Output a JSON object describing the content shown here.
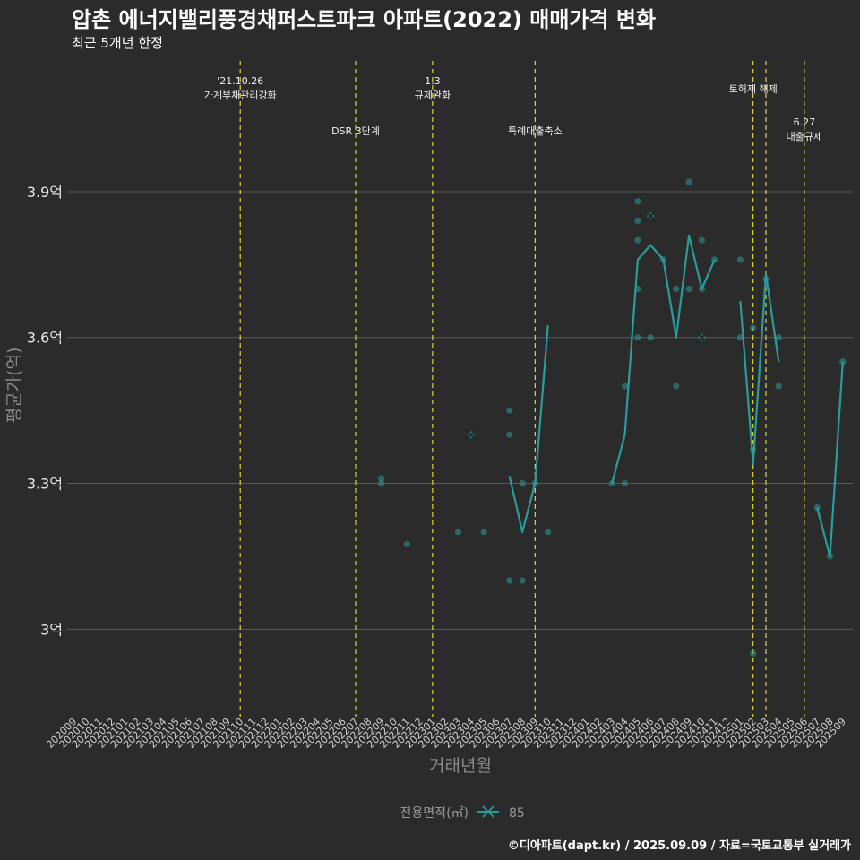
{
  "title": "압촌 에너지밸리풍경채퍼스트파크 아파트(2022) 매매가격 변화",
  "subtitle": "최근 5개년 한정",
  "source": "©디아파트(dapt.kr) / 2025.09.09 / 자료=국토교통부 실거래가",
  "colors": {
    "background": "#2b2b2b",
    "series": "#2a9d9a",
    "event_line": "#d9d93a",
    "grid": "#5a5a5a"
  },
  "chart_data": {
    "type": "line",
    "xlabel": "거래년월",
    "ylabel": "평균가(억)",
    "ylim": [
      2.82,
      4.18
    ],
    "yticks": [
      3.0,
      3.3,
      3.6,
      3.9
    ],
    "ytick_labels": [
      "3억",
      "3.3억",
      "3.6억",
      "3.9억"
    ],
    "grid": true,
    "x": [
      "202009",
      "202010",
      "202011",
      "202012",
      "202101",
      "202102",
      "202103",
      "202104",
      "202105",
      "202106",
      "202107",
      "202108",
      "202109",
      "202110",
      "202111",
      "202112",
      "202201",
      "202202",
      "202203",
      "202204",
      "202205",
      "202206",
      "202207",
      "202208",
      "202209",
      "202210",
      "202211",
      "202212",
      "202301",
      "202302",
      "202303",
      "202304",
      "202305",
      "202306",
      "202307",
      "202308",
      "202309",
      "202310",
      "202311",
      "202312",
      "202401",
      "202402",
      "202403",
      "202404",
      "202405",
      "202406",
      "202407",
      "202408",
      "202409",
      "202410",
      "202411",
      "202412",
      "202501",
      "202502",
      "202503",
      "202504",
      "202505",
      "202506",
      "202507",
      "202508",
      "202509"
    ],
    "events": [
      {
        "x": "202110",
        "label": "'21.10.26 가계부채관리강화",
        "lines": [
          "'21.10.26",
          "가계부채관리강화"
        ]
      },
      {
        "x": "202207",
        "label": "DSR 3단계",
        "lines": [
          "DSR 3단계"
        ]
      },
      {
        "x": "202301",
        "label": "1.3 규제완화",
        "lines": [
          "1.3",
          "규제완화"
        ]
      },
      {
        "x": "202309",
        "label": "특례대출축소",
        "lines": [
          "특례대출축소"
        ]
      },
      {
        "x": "202502",
        "label": "토허제 해제",
        "lines": [
          "토허제 해제"
        ]
      },
      {
        "x": "202503",
        "label": "",
        "lines": []
      },
      {
        "x": "202506",
        "label": "6.27 대출규제",
        "lines": [
          "6.27",
          "대출규제"
        ]
      }
    ],
    "series": [
      {
        "name": "85",
        "line_segments": [
          [
            [
              "202307",
              3.315
            ],
            [
              "202308",
              3.2
            ],
            [
              "202309",
              3.3
            ],
            [
              "202310",
              3.625
            ]
          ],
          [
            [
              "202403",
              3.3
            ],
            [
              "202404",
              3.4
            ],
            [
              "202405",
              3.76
            ],
            [
              "202406",
              3.79
            ],
            [
              "202407",
              3.76
            ],
            [
              "202408",
              3.6
            ],
            [
              "202409",
              3.81
            ],
            [
              "202410",
              3.7
            ],
            [
              "202411",
              3.76
            ]
          ],
          [
            [
              "202501",
              3.675
            ],
            [
              "202502",
              3.34
            ],
            [
              "202503",
              3.73
            ],
            [
              "202504",
              3.55
            ]
          ],
          [
            [
              "202507",
              3.25
            ],
            [
              "202508",
              3.15
            ],
            [
              "202509",
              3.55
            ]
          ]
        ],
        "points": [
          [
            "202209",
            3.31
          ],
          [
            "202209",
            3.3
          ],
          [
            "202211",
            3.175
          ],
          [
            "202303",
            3.2
          ],
          [
            "202305",
            3.2
          ],
          [
            "202307",
            3.45
          ],
          [
            "202307",
            3.4
          ],
          [
            "202307",
            3.1
          ],
          [
            "202308",
            3.3
          ],
          [
            "202308",
            3.1
          ],
          [
            "202309",
            3.3
          ],
          [
            "202310",
            3.2
          ],
          [
            "202403",
            3.3
          ],
          [
            "202404",
            3.5
          ],
          [
            "202404",
            3.3
          ],
          [
            "202405",
            3.88
          ],
          [
            "202405",
            3.84
          ],
          [
            "202405",
            3.8
          ],
          [
            "202405",
            3.7
          ],
          [
            "202405",
            3.6
          ],
          [
            "202406",
            3.6
          ],
          [
            "202407",
            3.76
          ],
          [
            "202408",
            3.7
          ],
          [
            "202408",
            3.5
          ],
          [
            "202409",
            3.92
          ],
          [
            "202409",
            3.7
          ],
          [
            "202410",
            3.8
          ],
          [
            "202410",
            3.7
          ],
          [
            "202411",
            3.76
          ],
          [
            "202501",
            3.76
          ],
          [
            "202501",
            3.6
          ],
          [
            "202502",
            3.62
          ],
          [
            "202502",
            3.37
          ],
          [
            "202502",
            2.95
          ],
          [
            "202503",
            3.72
          ],
          [
            "202504",
            3.6
          ],
          [
            "202504",
            3.5
          ],
          [
            "202507",
            3.25
          ],
          [
            "202508",
            3.15
          ],
          [
            "202509",
            3.55
          ]
        ],
        "markers": [
          [
            "202304",
            3.4
          ],
          [
            "202406",
            3.85
          ],
          [
            "202410",
            3.6
          ]
        ]
      }
    ],
    "legend": {
      "title": "전용면적(㎡)",
      "position": "bottom",
      "entries": [
        "85"
      ]
    }
  }
}
